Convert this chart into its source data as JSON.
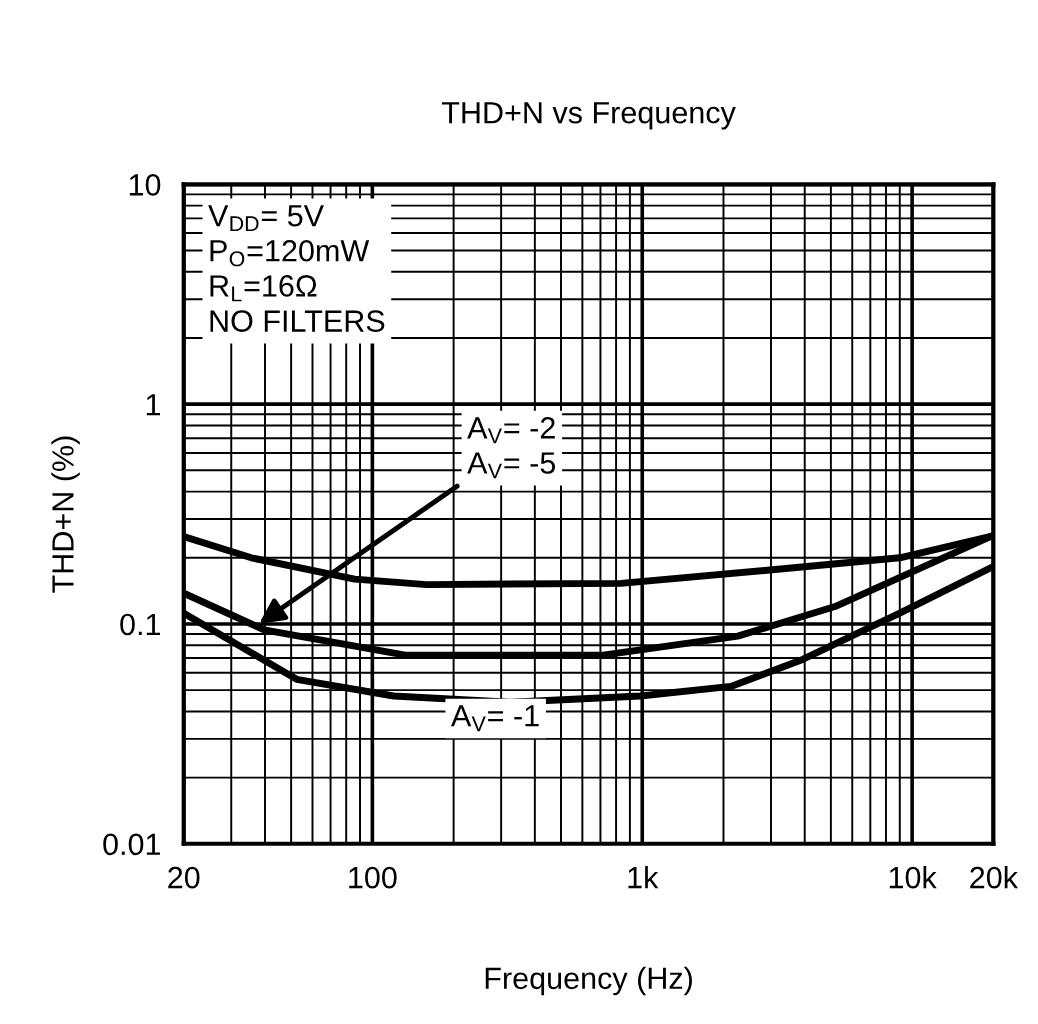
{
  "chart_data": {
    "type": "line",
    "title": "THD+N vs Frequency",
    "xlabel": "Frequency (Hz)",
    "ylabel": "THD+N (%)",
    "log": "xy",
    "xlim": [
      20,
      20000
    ],
    "ylim": [
      0.01,
      10
    ],
    "xticks": [
      20,
      100,
      {
        "value": 1000,
        "label": "1k"
      },
      {
        "value": 10000,
        "label": "10k"
      },
      {
        "value": 20000,
        "label": "20k"
      }
    ],
    "yticks": [
      0.01,
      0.1,
      1,
      10
    ],
    "grid": true,
    "marker": "none",
    "line_style": "solid",
    "series": [
      {
        "color": "#000000",
        "x": [
          20,
          35.6,
          86,
          159,
          834,
          2970,
          9000,
          19540
        ],
        "values": [
          0.25,
          0.2,
          0.16,
          0.151,
          0.153,
          0.176,
          0.2,
          0.25
        ]
      },
      {
        "color": "#000000",
        "x": [
          20,
          39.7,
          134,
          706,
          2260,
          5180,
          19540
        ],
        "values": [
          0.138,
          0.094,
          0.072,
          0.072,
          0.088,
          0.12,
          0.25
        ]
      },
      {
        "color": "#000000",
        "x": [
          20,
          52.4,
          120,
          326,
          984,
          2130,
          3930,
          9000,
          19540
        ],
        "values": [
          0.112,
          0.056,
          0.047,
          0.044,
          0.047,
          0.052,
          0.069,
          0.112,
          0.18
        ]
      }
    ],
    "annotations": [
      "V$_{DD}$= 5V\nP$_{O}$=120mW\nR$_{L}$=16Ω\nNO FILTERS",
      {
        "text": "A$_{V}$= -2\nA$_{V}$= -5",
        "x": 38,
        "y": 0.1
      },
      "A$_{V}$= -1"
    ]
  }
}
